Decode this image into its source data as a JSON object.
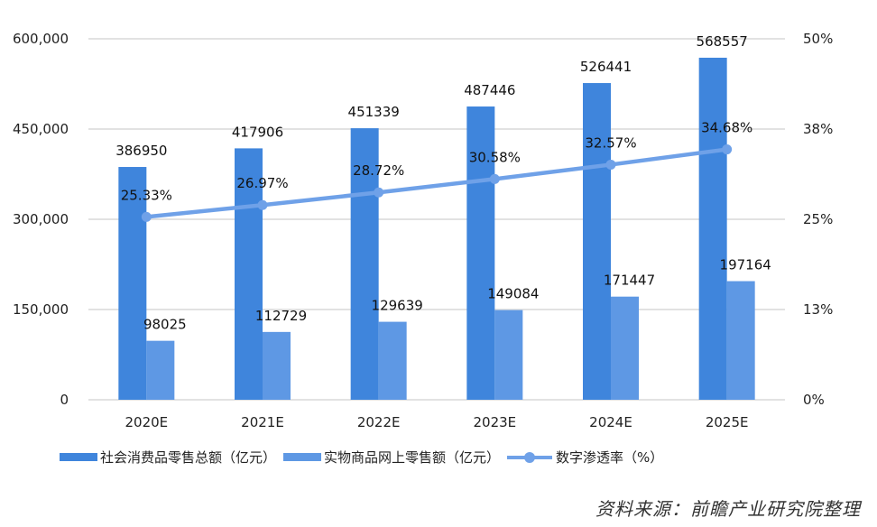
{
  "chart_data": {
    "type": "bar",
    "categories": [
      "2020E",
      "2021E",
      "2022E",
      "2023E",
      "2024E",
      "2025E"
    ],
    "series": [
      {
        "name": "社会消费品零售总额（亿元）",
        "type": "bar",
        "axis": "left",
        "color": "#3f85dc",
        "values": [
          386950,
          417906,
          451339,
          487446,
          526441,
          568557
        ],
        "labels": [
          "386950",
          "417906",
          "451339",
          "487446",
          "526441",
          "568557"
        ]
      },
      {
        "name": "实物商品网上零售额（亿元）",
        "type": "bar",
        "axis": "left",
        "color": "#5e98e4",
        "values": [
          98025,
          112729,
          129639,
          149084,
          171447,
          197164
        ],
        "labels": [
          "98025",
          "112729",
          "129639",
          "149084",
          "171447",
          "197164"
        ]
      },
      {
        "name": "数字渗透率（%）",
        "type": "line",
        "axis": "right",
        "color": "#6fa1e8",
        "values": [
          25.33,
          26.97,
          28.72,
          30.58,
          32.57,
          34.68
        ],
        "labels": [
          "25.33%",
          "26.97%",
          "28.72%",
          "30.58%",
          "32.57%",
          "34.68%"
        ]
      }
    ],
    "y_left": {
      "range": [
        0,
        600000
      ],
      "ticks": [
        "0",
        "150,000",
        "300,000",
        "450,000",
        "600,000"
      ]
    },
    "y_right": {
      "range": [
        0,
        50
      ],
      "ticks": [
        "0%",
        "13%",
        "25%",
        "38%",
        "50%"
      ]
    },
    "grid": true,
    "legend": "bottom"
  },
  "source": "资料来源：前瞻产业研究院整理"
}
